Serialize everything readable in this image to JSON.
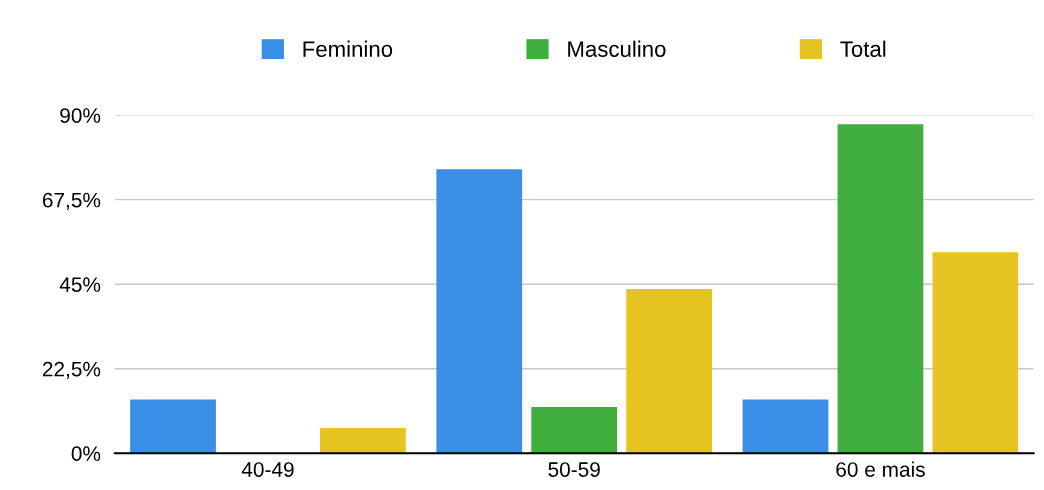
{
  "chart_data": {
    "type": "bar",
    "categories": [
      "40-49",
      "50-59",
      "60 e mais"
    ],
    "series": [
      {
        "name": "Feminino",
        "color": "#3a8ee6",
        "values": [
          14.3,
          75.6,
          14.3
        ]
      },
      {
        "name": "Masculino",
        "color": "#3fae3f",
        "values": [
          0,
          12.3,
          87.6
        ]
      },
      {
        "name": "Total",
        "color": "#e6c422",
        "values": [
          6.7,
          43.7,
          53.5
        ]
      }
    ],
    "ylim": [
      0,
      90
    ],
    "yticks": [
      {
        "value": 0,
        "label": "0%"
      },
      {
        "value": 22.5,
        "label": "22,5%"
      },
      {
        "value": 45,
        "label": "45%"
      },
      {
        "value": 67.5,
        "label": "67,5%"
      },
      {
        "value": 90,
        "label": "90%"
      }
    ],
    "grid": "y",
    "legend": "top"
  }
}
